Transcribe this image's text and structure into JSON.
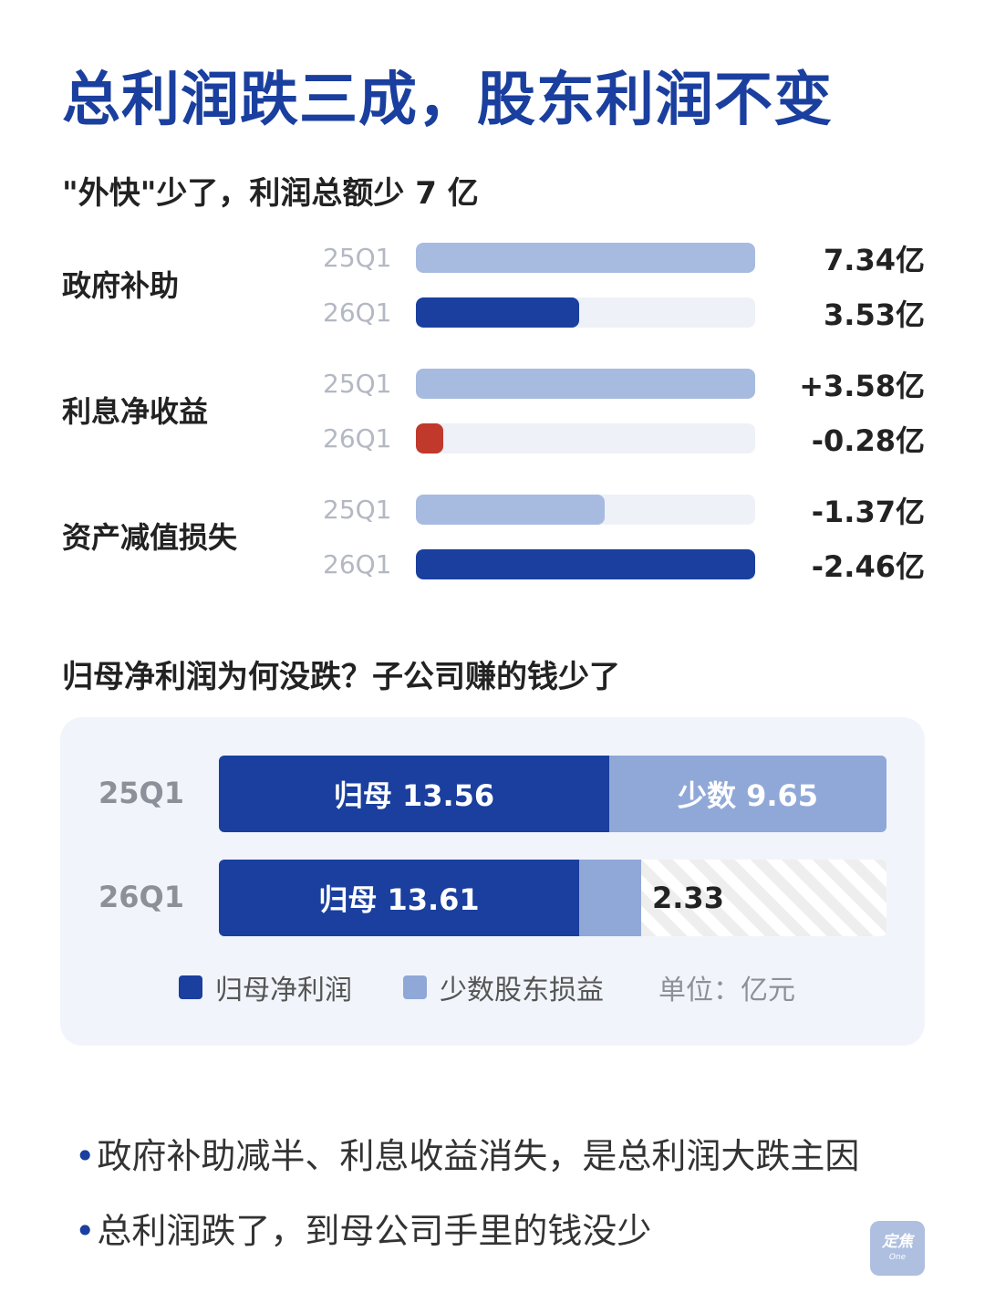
{
  "title": "总利润跌三成，股东利润不变",
  "section1": {
    "title": "\"外快\"少了，利润总额少 7 亿"
  },
  "colors": {
    "dark_blue": "#1a3f9e",
    "light_blue": "#a7bbe0",
    "red": "#c0392b",
    "track": "#eef1f7",
    "minority_blue": "#90a8d8"
  },
  "chart_data": [
    {
      "type": "bar",
      "orientation": "horizontal",
      "title": "\"外快\"少了，利润总额少 7 亿",
      "categories": [
        "政府补助",
        "利息净收益",
        "资产减值损失"
      ],
      "series": [
        {
          "name": "25Q1",
          "values": [
            7.34,
            3.58,
            -1.37
          ],
          "labels": [
            "7.34亿",
            "+3.58亿",
            "-1.37亿"
          ]
        },
        {
          "name": "26Q1",
          "values": [
            3.53,
            -0.28,
            -2.46
          ],
          "labels": [
            "3.53亿",
            "-0.28亿",
            "-2.46亿"
          ]
        }
      ],
      "grid": false
    },
    {
      "type": "bar",
      "orientation": "horizontal",
      "stacked": true,
      "title": "归母净利润为何没跌？子公司赚的钱少了",
      "categories": [
        "25Q1",
        "26Q1"
      ],
      "series": [
        {
          "name": "归母净利润",
          "values": [
            13.56,
            13.61
          ],
          "labels": [
            "归母 13.56",
            "归母 13.61"
          ]
        },
        {
          "name": "少数股东损益",
          "values": [
            9.65,
            2.33
          ],
          "labels": [
            "少数 9.65",
            "2.33"
          ]
        }
      ],
      "unit_note": "单位：亿元",
      "legend_position": "bottom"
    }
  ],
  "section2": {
    "title": "归母净利润为何没跌？子公司赚的钱少了",
    "legend": {
      "parent": "归母净利润",
      "minority": "少数股东损益",
      "unit": "单位：亿元"
    }
  },
  "bullets": [
    "政府补助减半、利息收益消失，是总利润大跌主因",
    "总利润跌了，到母公司手里的钱没少"
  ],
  "logo": {
    "line1": "定焦",
    "line2": "One"
  }
}
